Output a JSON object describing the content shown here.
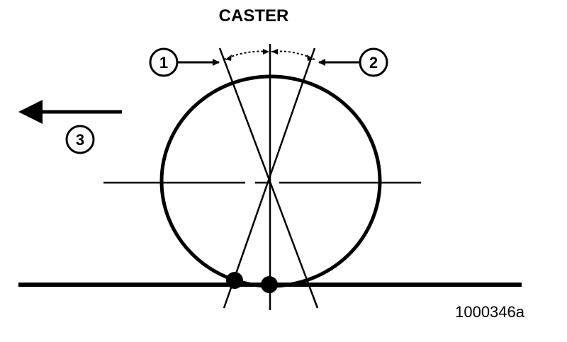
{
  "title": "CASTER",
  "callouts": {
    "one": "1",
    "two": "2",
    "three": "3"
  },
  "figure_id": "1000346a",
  "colors": {
    "line": "#000000",
    "background": "#ffffff"
  }
}
